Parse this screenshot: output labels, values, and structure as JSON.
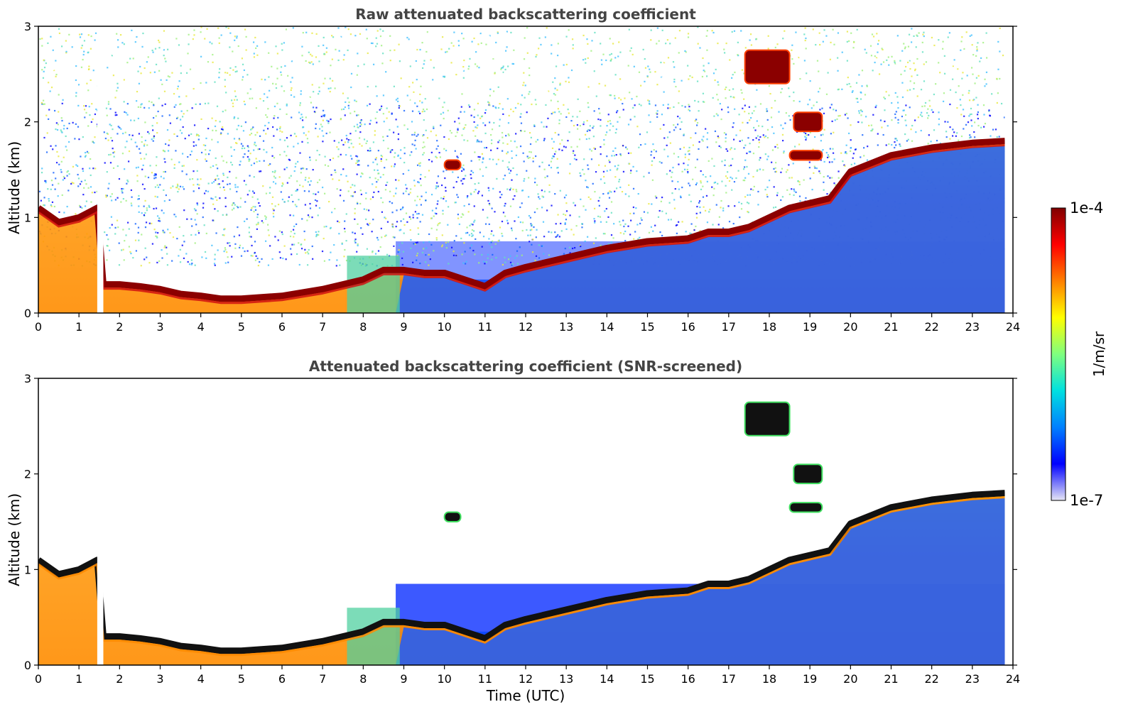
{
  "chart_data": [
    {
      "type": "heatmap",
      "title": "Raw attenuated backscattering coefficient",
      "xlabel": "",
      "ylabel": "Altitude (km)",
      "xlim": [
        0,
        24
      ],
      "ylim": [
        0,
        3
      ],
      "xticks": [
        "0",
        "1",
        "2",
        "3",
        "4",
        "5",
        "6",
        "7",
        "8",
        "9",
        "10",
        "11",
        "12",
        "13",
        "14",
        "15",
        "16",
        "17",
        "18",
        "19",
        "20",
        "21",
        "22",
        "23",
        "24"
      ],
      "yticks": [
        "0",
        "1",
        "2",
        "3"
      ],
      "data_gap_utc": [
        1.45,
        1.6
      ],
      "data_end_utc": 23.8,
      "boundary_layer_top_km": {
        "time_utc": [
          0,
          0.5,
          1,
          1.45,
          1.6,
          2,
          2.5,
          3,
          3.5,
          4,
          4.5,
          5,
          6,
          7,
          7.5,
          8,
          8.5,
          9,
          9.5,
          10,
          10.5,
          11,
          11.5,
          12,
          13,
          14,
          15,
          16,
          16.5,
          17,
          17.5,
          18.5,
          19,
          19.5,
          20,
          21,
          22,
          23,
          23.8
        ],
        "altitude_km": [
          1.1,
          0.95,
          1.0,
          1.1,
          0.3,
          0.3,
          0.28,
          0.25,
          0.2,
          0.18,
          0.15,
          0.15,
          0.18,
          0.25,
          0.3,
          0.35,
          0.45,
          0.45,
          0.42,
          0.42,
          0.35,
          0.28,
          0.42,
          0.48,
          0.58,
          0.68,
          0.75,
          0.78,
          0.85,
          0.85,
          0.9,
          1.1,
          1.15,
          1.2,
          1.48,
          1.65,
          1.73,
          1.78,
          1.8
        ]
      },
      "cloud_features": [
        {
          "time_utc": [
            17.4,
            18.5
          ],
          "altitude_km": [
            2.4,
            2.75
          ]
        },
        {
          "time_utc": [
            18.6,
            19.3
          ],
          "altitude_km": [
            1.9,
            2.1
          ]
        },
        {
          "time_utc": [
            18.5,
            19.3
          ],
          "altitude_km": [
            1.6,
            1.7
          ]
        },
        {
          "time_utc": [
            10.0,
            10.4
          ],
          "altitude_km": [
            1.5,
            1.6
          ]
        }
      ]
    },
    {
      "type": "heatmap",
      "title": "Attenuated backscattering coefficient (SNR-screened)",
      "xlabel": "Time (UTC)",
      "ylabel": "Altitude (km)",
      "xlim": [
        0,
        24
      ],
      "ylim": [
        0,
        3
      ],
      "xticks": [
        "0",
        "1",
        "2",
        "3",
        "4",
        "5",
        "6",
        "7",
        "8",
        "9",
        "10",
        "11",
        "12",
        "13",
        "14",
        "15",
        "16",
        "17",
        "18",
        "19",
        "20",
        "21",
        "22",
        "23",
        "24"
      ],
      "yticks": [
        "0",
        "1",
        "2",
        "3"
      ]
    }
  ],
  "colorbar": {
    "min_label": "1e-7",
    "max_label": "1e-4",
    "label": "1/m/sr",
    "colors": [
      "#e6e6f5",
      "#0000ff",
      "#0080ff",
      "#00e0e0",
      "#7fff7f",
      "#ffff00",
      "#ff8000",
      "#ff0000",
      "#800000"
    ]
  }
}
